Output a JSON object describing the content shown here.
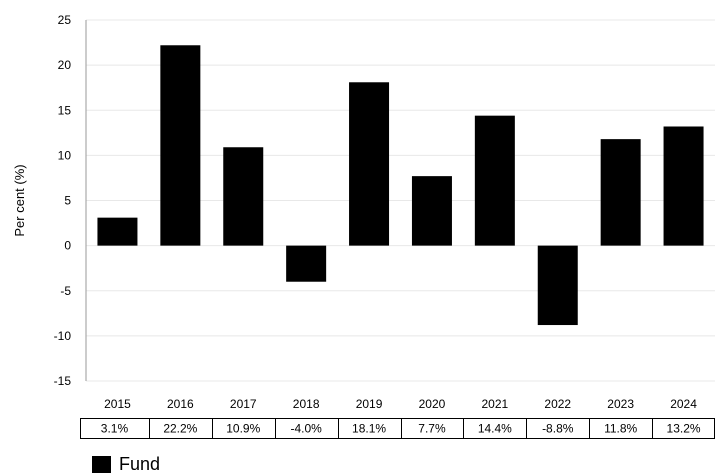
{
  "chart_data": {
    "type": "bar",
    "categories": [
      "2015",
      "2016",
      "2017",
      "2018",
      "2019",
      "2020",
      "2021",
      "2022",
      "2023",
      "2024"
    ],
    "series": [
      {
        "name": "Fund",
        "values": [
          3.1,
          22.2,
          10.9,
          -4.0,
          18.1,
          7.7,
          14.4,
          -8.8,
          11.8,
          13.2
        ]
      }
    ],
    "table_values": [
      "3.1%",
      "22.2%",
      "10.9%",
      "-4.0%",
      "18.1%",
      "7.7%",
      "14.4%",
      "-8.8%",
      "11.8%",
      "13.2%"
    ],
    "ylabel": "Per cent (%)",
    "xlabel": "",
    "ylim": [
      -15,
      25
    ],
    "yticks": [
      25,
      20,
      15,
      10,
      5,
      0,
      -5,
      -10,
      -15
    ],
    "grid": true,
    "legend": "bottom-left",
    "bar_color": "#000000",
    "grid_color": "#e8e8e8"
  },
  "legend": {
    "label": "Fund"
  }
}
